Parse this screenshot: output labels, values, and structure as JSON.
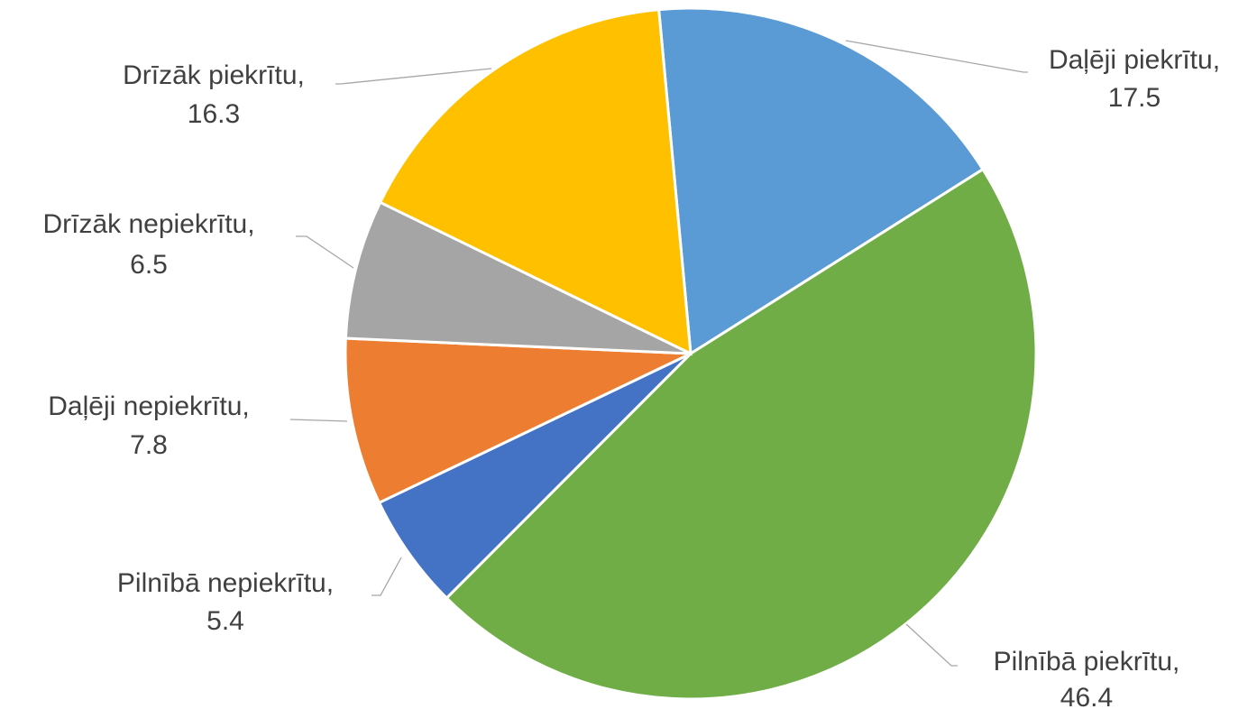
{
  "chart_data": {
    "type": "pie",
    "categories": [
      "Daļēji piekrītu,",
      "Pilnībā piekrītu,",
      "Pilnībā nepiekrītu,",
      "Daļēji nepiekrītu,",
      "Drīzāk nepiekrītu,",
      "Drīzāk piekrītu,"
    ],
    "values": [
      17.5,
      46.4,
      5.4,
      7.8,
      6.5,
      16.3
    ],
    "colors": [
      "#5b9bd5",
      "#70ad47",
      "#4472c4",
      "#ed7d31",
      "#a5a5a5",
      "#ffc000"
    ]
  }
}
